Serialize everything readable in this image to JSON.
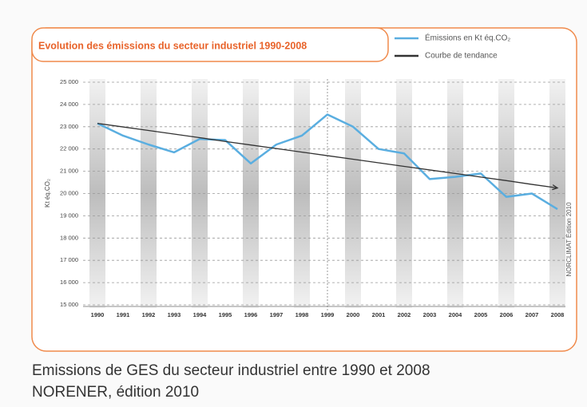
{
  "chart_data": {
    "type": "line",
    "title": "Evolution des émissions du secteur industriel 1990-2008",
    "y_label": "Kt éq.CO₂",
    "side_note": "NORCLIMAT Édition 2010",
    "categories": [
      "1990",
      "1991",
      "1992",
      "1993",
      "1994",
      "1995",
      "1996",
      "1997",
      "1998",
      "1999",
      "2000",
      "2001",
      "2002",
      "2003",
      "2004",
      "2005",
      "2006",
      "2007",
      "2008"
    ],
    "series": [
      {
        "name": "Émissions en Kt éq.CO₂",
        "color": "#5aaee0",
        "values": [
          23150,
          22600,
          22200,
          21850,
          22450,
          22400,
          21350,
          22200,
          22600,
          23550,
          23000,
          22000,
          21800,
          20650,
          20750,
          20900,
          19850,
          20000,
          19300
        ]
      },
      {
        "name": "Courbe de tendance",
        "color": "#333333",
        "values": [
          23150,
          22990,
          22830,
          22670,
          22510,
          22340,
          22180,
          22020,
          21860,
          21700,
          21540,
          21380,
          21220,
          21060,
          20900,
          20740,
          20580,
          20410,
          20250
        ]
      }
    ],
    "ylim": [
      15000,
      25000
    ],
    "yticks": [
      {
        "value": 15000,
        "label": "15 000"
      },
      {
        "value": 16000,
        "label": "16 000"
      },
      {
        "value": 17000,
        "label": "17 000"
      },
      {
        "value": 18000,
        "label": "18 000"
      },
      {
        "value": 19000,
        "label": "19 000"
      },
      {
        "value": 20000,
        "label": "20 000"
      },
      {
        "value": 21000,
        "label": "21 000"
      },
      {
        "value": 22000,
        "label": "22 000"
      },
      {
        "value": 23000,
        "label": "23 000"
      },
      {
        "value": 24000,
        "label": "24 000"
      },
      {
        "value": 25000,
        "label": "25 000"
      }
    ],
    "grid": true,
    "caption": [
      "Emissions de GES du secteur industriel entre 1990 et 2008",
      "NORENER, édition 2010"
    ]
  }
}
